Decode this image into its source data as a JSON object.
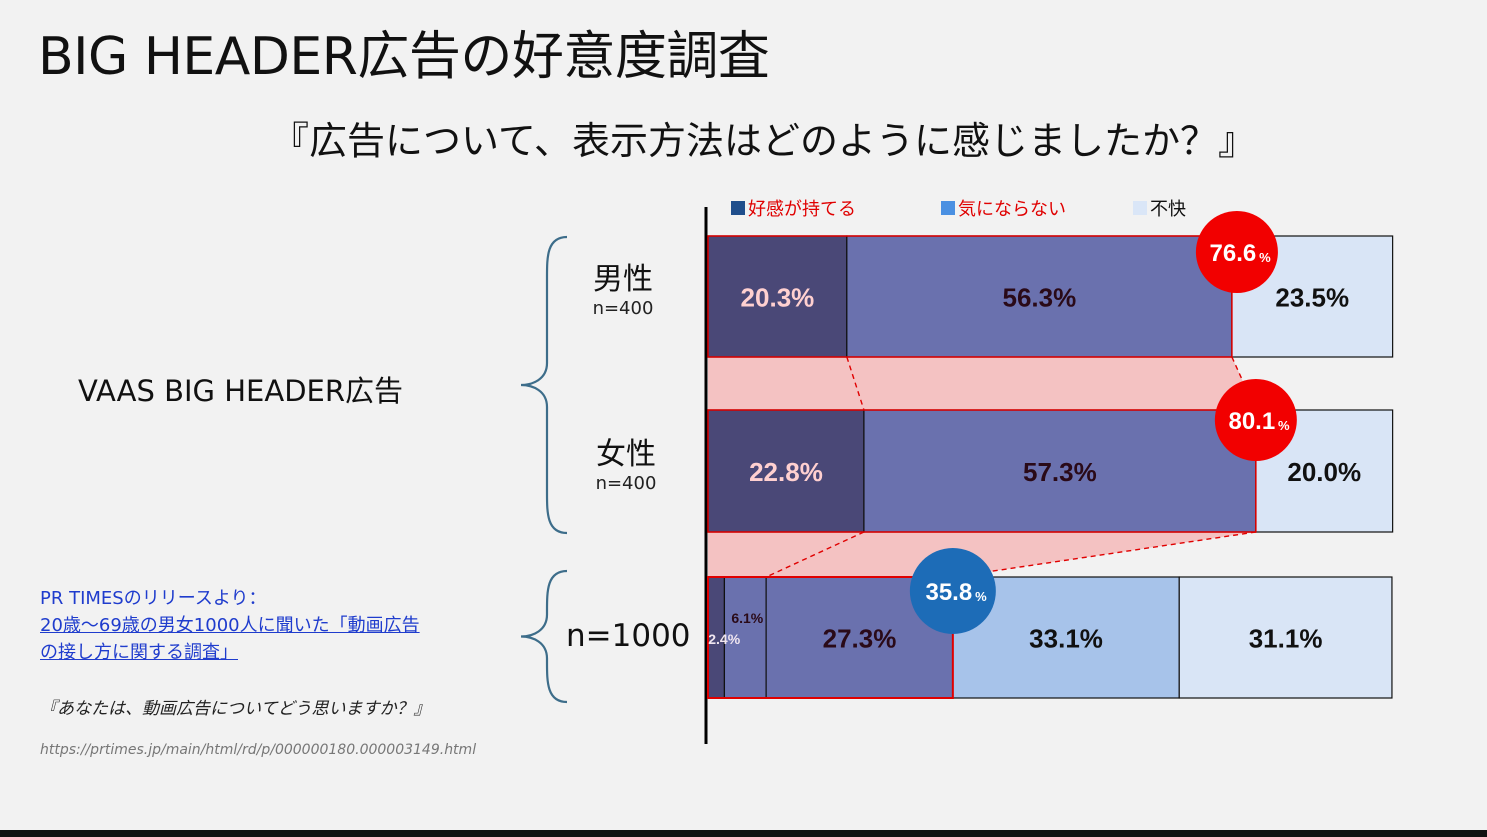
{
  "title": "BIG HEADER広告の好意度調査",
  "subtitle": "『広告について、表示方法はどのように感じましたか？』",
  "group_label": "VAAS BIG HEADER広告",
  "rows": [
    {
      "label": "男性",
      "n": "n=400"
    },
    {
      "label": "女性",
      "n": "n=400"
    },
    {
      "label": "n=1000",
      "n": ""
    }
  ],
  "source": {
    "heading": "PR TIMESのリリースより：",
    "link_line1": "20歳～69歳の男女1000人に聞いた「動画広告",
    "link_line2": "の接し方に関する調査」",
    "question": "『あなたは、動画広告についてどう思いますか？』",
    "url": "https://prtimes.jp/main/html/rd/p/000000180.000003149.html"
  },
  "legend": [
    {
      "label": "好感が持てる",
      "swatch": "#1f4e8c",
      "text_color": "#e00000"
    },
    {
      "label": "気にならない",
      "swatch": "#4a90e2",
      "text_color": "#e00000"
    },
    {
      "label": "不快",
      "swatch": "#dae6f7",
      "text_color": "#111111"
    }
  ],
  "colors": {
    "like": "#4a4877",
    "neutral": "#6a71ae",
    "neutral_light": "#a7c3ea",
    "dislike": "#d9e5f6",
    "highlight_fill": "#f4c2c2",
    "highlight_stroke": "#e00000",
    "badge_red": "#f20000",
    "badge_blue": "#1d6cb7",
    "label_pink": "#ffd0d0",
    "label_dark": "#2a0a18"
  },
  "chart_data": {
    "type": "bar",
    "orientation": "horizontal-stacked",
    "categories": [
      "男性",
      "女性",
      "n=1000"
    ],
    "series": [
      {
        "name": "好感が持てる",
        "values": [
          20.3,
          22.8,
          2.4
        ]
      },
      {
        "name": "気にならない",
        "values": [
          56.3,
          57.3,
          6.1
        ]
      },
      {
        "name": "",
        "values": [
          0,
          0,
          27.3
        ]
      },
      {
        "name": "",
        "values": [
          0,
          0,
          33.1
        ]
      },
      {
        "name": "不快",
        "values": [
          23.5,
          20.0,
          31.1
        ]
      }
    ],
    "data_labels": [
      [
        "20.3%",
        "56.3%",
        "",
        "",
        "23.5%"
      ],
      [
        "22.8%",
        "57.3%",
        "",
        "",
        "20.0%"
      ],
      [
        "2.4%",
        "6.1%",
        "27.3%",
        "33.1%",
        "31.1%"
      ]
    ],
    "badges": [
      {
        "value": "76.6",
        "unit": "%"
      },
      {
        "value": "80.1",
        "unit": "%"
      },
      {
        "value": "35.8",
        "unit": "%"
      }
    ],
    "xlim": [
      0,
      100.3
    ]
  }
}
